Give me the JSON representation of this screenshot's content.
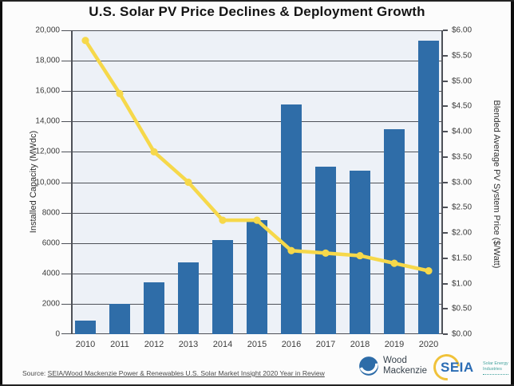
{
  "title": "U.S. Solar PV Price Declines & Deployment Growth",
  "colors": {
    "bar": "#2f6da8",
    "line": "#f6d84a",
    "plot_bg": "#edf1f7",
    "grid": "#4e5158",
    "page_bg": "#fcfcfc"
  },
  "chart_data": {
    "type": "bar",
    "title": "U.S. Solar PV Price Declines & Deployment Growth",
    "categories": [
      "2010",
      "2011",
      "2012",
      "2013",
      "2014",
      "2015",
      "2016",
      "2017",
      "2018",
      "2019",
      "2020"
    ],
    "series": [
      {
        "name": "Installed Capacity (MWdc)",
        "type": "bar",
        "axis": "left",
        "values": [
          900,
          2000,
          3400,
          4750,
          6200,
          7500,
          15100,
          11000,
          10750,
          13500,
          19300
        ]
      },
      {
        "name": "Blended Average PV System Price ($/Watt)",
        "type": "line",
        "axis": "right",
        "values": [
          5.8,
          4.75,
          3.6,
          3.0,
          2.25,
          2.25,
          1.65,
          1.6,
          1.55,
          1.4,
          1.25
        ]
      }
    ],
    "left_axis": {
      "label": "Installed Capacity (MWdc)",
      "min": 0,
      "max": 20000,
      "step": 2000,
      "tick_labels": [
        "0",
        "2000",
        "4000",
        "6000",
        "8000",
        "10,000",
        "12,000",
        "14,000",
        "16,000",
        "18,000",
        "20,000"
      ]
    },
    "right_axis": {
      "label": "Blended Average PV System Price ($/Watt)",
      "min": 0,
      "max": 6,
      "step": 0.5,
      "tick_labels": [
        "$0.00",
        "$0.50",
        "$1.00",
        "$1.50",
        "$2.00",
        "$2.50",
        "$3.00",
        "$3.50",
        "$4.00",
        "$4.50",
        "$5.00",
        "$5.50",
        "$6.00"
      ]
    },
    "grid": true,
    "legend": "none"
  },
  "footer": {
    "source_prefix": "Source:",
    "source_link": "SEIA/Wood Mackenzie Power & Renewables U.S. Solar Market Insight 2020 Year in Review"
  },
  "logos": {
    "wood_mackenzie": {
      "line1": "Wood",
      "line2": "Mackenzie"
    },
    "seia": {
      "acronym": "SEIA",
      "subtext": [
        "Solar Energy",
        "Industries",
        "Association®"
      ]
    }
  }
}
